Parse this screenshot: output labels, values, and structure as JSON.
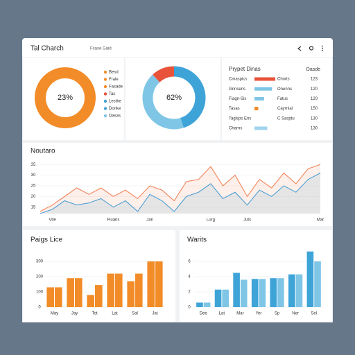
{
  "header": {
    "title": "Tal Charch",
    "subtitle": "Fsase Gaid"
  },
  "table": {
    "title": "Prypet Dinas",
    "header": "Dasde",
    "rows": [
      {
        "label": "Cmaspics",
        "bar": 65,
        "color": "#e8533a",
        "status": "Chorts",
        "value": "123"
      },
      {
        "label": "Gnnsens",
        "bar": 55,
        "color": "#7fc6e6",
        "status": "Onenns",
        "value": "120"
      },
      {
        "label": "Fiagn-Sis",
        "bar": 30,
        "color": "#7fc6e6",
        "status": "Fatus",
        "value": "120"
      },
      {
        "label": "Tasas",
        "bar": 12,
        "color": "#f28c28",
        "status": "Cayrnial",
        "value": "150"
      },
      {
        "label": "Taglsps Ens",
        "status": "C Sasptu",
        "value": "130"
      },
      {
        "label": "Charns",
        "bar": 40,
        "color": "#9fd3ee",
        "status": "",
        "value": "130"
      }
    ]
  },
  "chart_data": [
    {
      "type": "pie",
      "center_label": "23%",
      "values": [
        100
      ],
      "colors": [
        "#f28c28"
      ],
      "legend_items": [
        {
          "label": "Besd",
          "color": "#f28c28"
        },
        {
          "label": "Frale",
          "color": "#f28c28"
        },
        {
          "label": "Fasade",
          "color": "#f28c28"
        },
        {
          "label": "Tas",
          "color": "#e8533a"
        },
        {
          "label": "Lestke",
          "color": "#3ea4d8"
        },
        {
          "label": "Donke",
          "color": "#3ea4d8"
        },
        {
          "label": "Dasas",
          "color": "#7fc6e6"
        }
      ]
    },
    {
      "type": "pie",
      "center_label": "62%",
      "values": [
        45,
        43,
        12
      ],
      "colors": [
        "#3ea4d8",
        "#7fc6e6",
        "#e8533a"
      ]
    },
    {
      "type": "line",
      "title": "Noutaro",
      "categories": [
        null,
        "Vite",
        null,
        null,
        null,
        null,
        "Fluans",
        null,
        null,
        "Jan",
        null,
        null,
        null,
        null,
        "Lurg",
        null,
        null,
        "Juts",
        null,
        null,
        null,
        null,
        null,
        "Mar"
      ],
      "series": [
        {
          "color": "#f0845a",
          "values": [
            13,
            16,
            20,
            24,
            21,
            24,
            20,
            23,
            19,
            25,
            23,
            18,
            27,
            28,
            34,
            25,
            30,
            20,
            28,
            24,
            31,
            26,
            33,
            35
          ]
        },
        {
          "color": "#4a9fd4",
          "values": [
            12,
            14,
            18,
            16,
            17,
            19,
            15,
            18,
            13,
            21,
            18,
            13,
            20,
            22,
            26,
            19,
            22,
            16,
            23,
            20,
            25,
            22,
            28,
            31
          ]
        }
      ],
      "ylim": [
        12,
        38
      ],
      "yticks": [
        15,
        20,
        25,
        30,
        35
      ],
      "grid": true
    },
    {
      "type": "bar",
      "title": "Paigs Lice",
      "categories": [
        "May",
        "Jay",
        "Tot",
        "Lat",
        "Sal",
        "Jat"
      ],
      "series": [
        {
          "color": "#f28c28",
          "values": [
            130,
            190,
            80,
            220,
            170,
            300
          ]
        },
        {
          "color": "#f28c28",
          "values": [
            130,
            190,
            145,
            220,
            220,
            300
          ]
        }
      ],
      "ylim": [
        0,
        350
      ],
      "yticks": [
        0,
        100,
        200,
        300
      ],
      "grid": true
    },
    {
      "type": "bar",
      "title": "Warits",
      "categories": [
        "Dee",
        "Lat",
        "Mar",
        "Yer",
        "Sp",
        "Ner",
        "Sel"
      ],
      "series": [
        {
          "color": "#3ea4d8",
          "values": [
            0.6,
            2.3,
            4.5,
            3.7,
            3.8,
            4.3,
            7.3
          ]
        },
        {
          "color": "#7fc6e6",
          "values": [
            0.6,
            2.3,
            3.6,
            3.7,
            3.8,
            4.3,
            6.0
          ]
        }
      ],
      "ylim": [
        0,
        8
      ],
      "yticks": [
        0,
        2,
        4,
        6
      ],
      "grid": true
    }
  ]
}
